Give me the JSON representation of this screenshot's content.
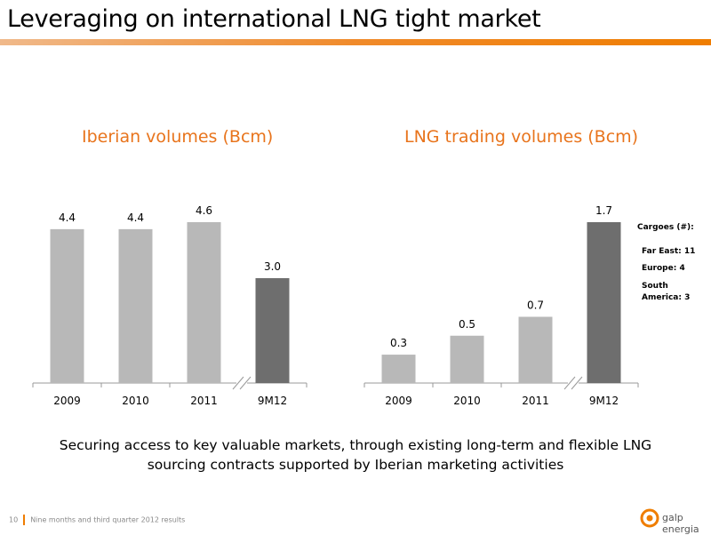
{
  "page": {
    "title": "Leveraging on international LNG tight market",
    "caption_line1": "Securing access to key valuable markets, through existing long-term and flexible LNG",
    "caption_line2": "sourcing contracts supported by Iberian marketing activities",
    "page_number": "10",
    "footer_text": "Nine months and third quarter 2012 results",
    "logo_text": "galp energia",
    "accent_color": "#ef7d00"
  },
  "cargoes": {
    "title": "Cargoes (#):",
    "far_east": "Far East: 11",
    "europe": "Europe: 4",
    "south_america_1": "South",
    "south_america_2": "America: 3"
  },
  "chart_data": [
    {
      "type": "bar",
      "title": "Iberian volumes (Bcm)",
      "categories": [
        "2009",
        "2010",
        "2011",
        "9M12"
      ],
      "values": [
        4.4,
        4.4,
        4.6,
        3.0
      ],
      "labels": [
        "4.4",
        "4.4",
        "4.6",
        "3.0"
      ],
      "highlight_index": 3,
      "bar_color": "#b8b8b8",
      "highlight_color": "#6e6e6e",
      "axis_break_before_last": true,
      "ylim": [
        0,
        4.6
      ]
    },
    {
      "type": "bar",
      "title": "LNG trading volumes (Bcm)",
      "categories": [
        "2009",
        "2010",
        "2011",
        "9M12"
      ],
      "values": [
        0.3,
        0.5,
        0.7,
        1.7
      ],
      "labels": [
        "0.3",
        "0.5",
        "0.7",
        "1.7"
      ],
      "highlight_index": 3,
      "bar_color": "#b8b8b8",
      "highlight_color": "#6e6e6e",
      "axis_break_before_last": true,
      "ylim": [
        0,
        1.7
      ]
    }
  ]
}
